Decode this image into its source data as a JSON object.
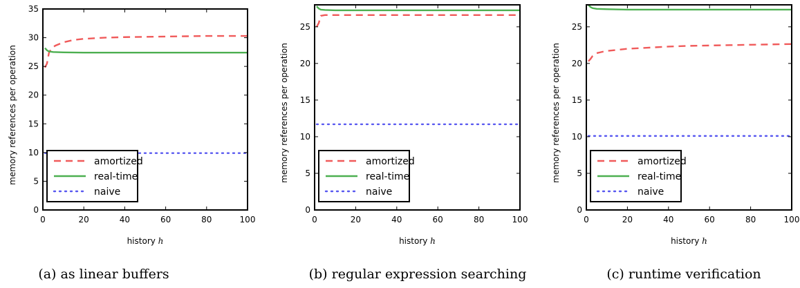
{
  "chart_data": [
    {
      "type": "line",
      "caption": "(a) as linear buffers",
      "xlabel": "history",
      "xlabel_var": "h",
      "ylabel": "memory references per operation",
      "xlim": [
        0,
        100
      ],
      "ylim": [
        0,
        35
      ],
      "xticks": [
        "0",
        "20",
        "40",
        "60",
        "80",
        "100"
      ],
      "yticks": [
        "0",
        "5",
        "10",
        "15",
        "20",
        "25",
        "30",
        "35"
      ],
      "grid": false,
      "legend_position": "lower-left",
      "series": [
        {
          "name": "amortized",
          "style": "dashed",
          "color": "#f05a5a",
          "x": [
            1,
            2,
            3,
            4,
            6,
            8,
            10,
            15,
            20,
            30,
            40,
            50,
            60,
            70,
            80,
            90,
            100
          ],
          "y": [
            24.8,
            25.5,
            27.4,
            28.0,
            28.6,
            28.9,
            29.2,
            29.6,
            29.8,
            30.0,
            30.1,
            30.15,
            30.2,
            30.25,
            30.3,
            30.3,
            30.3
          ]
        },
        {
          "name": "real-time",
          "style": "solid",
          "color": "#4caf50",
          "x": [
            1,
            2,
            3,
            5,
            10,
            20,
            40,
            60,
            80,
            100
          ],
          "y": [
            28.2,
            27.8,
            27.6,
            27.5,
            27.45,
            27.4,
            27.4,
            27.4,
            27.4,
            27.4
          ]
        },
        {
          "name": "naive",
          "style": "dotted",
          "color": "#5858f0",
          "x": [
            1,
            100
          ],
          "y": [
            9.9,
            9.9
          ]
        }
      ]
    },
    {
      "type": "line",
      "caption": "(b) regular expression searching",
      "xlabel": "history",
      "xlabel_var": "h",
      "ylabel": "memory references per operation",
      "xlim": [
        0,
        100
      ],
      "ylim": [
        0,
        28
      ],
      "xticks": [
        "0",
        "20",
        "40",
        "60",
        "80",
        "100"
      ],
      "yticks": [
        "0",
        "5",
        "10",
        "15",
        "20",
        "25"
      ],
      "grid": false,
      "legend_position": "lower-left",
      "series": [
        {
          "name": "amortized",
          "style": "dashed",
          "color": "#f05a5a",
          "x": [
            1,
            2,
            3,
            5,
            10,
            20,
            40,
            60,
            80,
            100
          ],
          "y": [
            25.0,
            25.5,
            26.5,
            26.6,
            26.6,
            26.6,
            26.6,
            26.6,
            26.6,
            26.6
          ]
        },
        {
          "name": "real-time",
          "style": "solid",
          "color": "#4caf50",
          "x": [
            1,
            2,
            3,
            5,
            10,
            20,
            40,
            60,
            80,
            100
          ],
          "y": [
            27.8,
            27.5,
            27.35,
            27.3,
            27.25,
            27.25,
            27.25,
            27.25,
            27.25,
            27.25
          ]
        },
        {
          "name": "naive",
          "style": "dotted",
          "color": "#5858f0",
          "x": [
            1,
            100
          ],
          "y": [
            11.7,
            11.7
          ]
        }
      ]
    },
    {
      "type": "line",
      "caption": "(c) runtime verification",
      "xlabel": "history",
      "xlabel_var": "h",
      "ylabel": "memory references per operation",
      "xlim": [
        0,
        100
      ],
      "ylim": [
        0,
        28
      ],
      "xticks": [
        "0",
        "20",
        "40",
        "60",
        "80",
        "100"
      ],
      "yticks": [
        "0",
        "5",
        "10",
        "15",
        "20",
        "25"
      ],
      "grid": false,
      "legend_position": "lower-left",
      "series": [
        {
          "name": "amortized",
          "style": "dashed",
          "color": "#f05a5a",
          "x": [
            1,
            2,
            3,
            5,
            8,
            10,
            20,
            30,
            40,
            50,
            60,
            70,
            80,
            90,
            100
          ],
          "y": [
            20.3,
            20.6,
            21.0,
            21.4,
            21.6,
            21.7,
            22.0,
            22.15,
            22.3,
            22.4,
            22.45,
            22.5,
            22.55,
            22.6,
            22.65
          ]
        },
        {
          "name": "real-time",
          "style": "solid",
          "color": "#4caf50",
          "x": [
            1,
            2,
            3,
            5,
            10,
            20,
            40,
            60,
            80,
            100
          ],
          "y": [
            28.0,
            27.7,
            27.55,
            27.45,
            27.4,
            27.35,
            27.35,
            27.35,
            27.35,
            27.35
          ]
        },
        {
          "name": "naive",
          "style": "dotted",
          "color": "#5858f0",
          "x": [
            1,
            100
          ],
          "y": [
            10.1,
            10.1
          ]
        }
      ]
    }
  ]
}
